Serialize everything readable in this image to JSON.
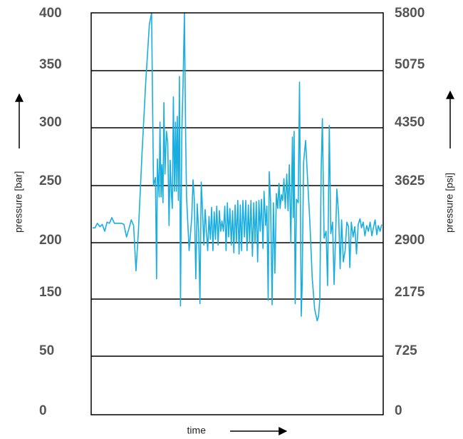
{
  "chart_data": {
    "type": "line",
    "title": "",
    "xlabel": "time",
    "ylabel_left": "pressure [bar]",
    "ylabel_right": "pressure [psi]",
    "left_ticks": [
      "400",
      "350",
      "300",
      "250",
      "200",
      "150",
      "50",
      "0"
    ],
    "right_ticks": [
      "5800",
      "5075",
      "4350",
      "3625",
      "2900",
      "2175",
      "725",
      "0"
    ],
    "grid": true,
    "line_color": "#1aaee0",
    "series": [
      {
        "values": [
          [
            0,
            213
          ],
          [
            1.1,
            213
          ],
          [
            2.2,
            217
          ],
          [
            3.4,
            214
          ],
          [
            4.5,
            216
          ],
          [
            5.6,
            210
          ],
          [
            6.7,
            218
          ],
          [
            7.8,
            217
          ],
          [
            8.9,
            222
          ],
          [
            10.1,
            217
          ],
          [
            11.2,
            217
          ],
          [
            12.3,
            217
          ],
          [
            13.4,
            217
          ],
          [
            14.5,
            216
          ],
          [
            15.7,
            205
          ],
          [
            16.8,
            212
          ],
          [
            17.9,
            220
          ],
          [
            19,
            215
          ],
          [
            20.1,
            175
          ],
          [
            21.2,
            210
          ],
          [
            22.9,
            278
          ],
          [
            24.6,
            340
          ],
          [
            26.3,
            390
          ],
          [
            27.3,
            400
          ],
          [
            28.2,
            250
          ],
          [
            29.1,
            257
          ],
          [
            29.6,
            168
          ],
          [
            30,
            273
          ],
          [
            30.8,
            240
          ],
          [
            31.2,
            305
          ],
          [
            31.7,
            240
          ],
          [
            32.1,
            268
          ],
          [
            32.6,
            235
          ],
          [
            33,
            322
          ],
          [
            33.5,
            260
          ],
          [
            34.2,
            297
          ],
          [
            34.8,
            287
          ],
          [
            35.4,
            215
          ],
          [
            35.9,
            272
          ],
          [
            36.4,
            245
          ],
          [
            36.9,
            230
          ],
          [
            37.4,
            327
          ],
          [
            37.9,
            245
          ],
          [
            38.4,
            305
          ],
          [
            38.8,
            245
          ],
          [
            39.2,
            310
          ],
          [
            39.7,
            237
          ],
          [
            40.2,
            345
          ],
          [
            40.7,
            138
          ],
          [
            41.3,
            295
          ],
          [
            41.9,
            338
          ],
          [
            42.5,
            400
          ],
          [
            43.1,
            290
          ],
          [
            43.5,
            240
          ],
          [
            44.7,
            193
          ],
          [
            45.9,
            222
          ],
          [
            46.5,
            255
          ],
          [
            47.1,
            238
          ],
          [
            47.8,
            168
          ],
          [
            48.4,
            234
          ],
          [
            49.1,
            210
          ],
          [
            49.7,
            142
          ],
          [
            50.3,
            253
          ],
          [
            50.8,
            233
          ],
          [
            51.5,
            198
          ],
          [
            52.1,
            229
          ],
          [
            52.7,
            210
          ],
          [
            53.3,
            193
          ],
          [
            53.9,
            223
          ],
          [
            54.5,
            203
          ],
          [
            55.1,
            231
          ],
          [
            55.7,
            193
          ],
          [
            56.3,
            227
          ],
          [
            56.9,
            203
          ],
          [
            57.5,
            232
          ],
          [
            58.1,
            198
          ],
          [
            58.7,
            228
          ],
          [
            59.3,
            210
          ],
          [
            59.9,
            219
          ],
          [
            60.6,
            210
          ],
          [
            61.2,
            232
          ],
          [
            61.8,
            193
          ],
          [
            62.4,
            235
          ],
          [
            63,
            205
          ],
          [
            63.6,
            230
          ],
          [
            64.2,
            198
          ],
          [
            64.8,
            228
          ],
          [
            65.4,
            191
          ],
          [
            66,
            233
          ],
          [
            66.6,
            200
          ],
          [
            67.2,
            237
          ],
          [
            67.8,
            190
          ],
          [
            68.4,
            233
          ],
          [
            69,
            193
          ],
          [
            69.6,
            237
          ],
          [
            70.3,
            205
          ],
          [
            70.9,
            237
          ],
          [
            71.5,
            193
          ],
          [
            72.1,
            233
          ],
          [
            72.7,
            200
          ],
          [
            73.3,
            237
          ],
          [
            74,
            188
          ],
          [
            74.6,
            235
          ],
          [
            75.2,
            200
          ],
          [
            75.8,
            236
          ],
          [
            76.4,
            183
          ],
          [
            77,
            237
          ],
          [
            77.6,
            210
          ],
          [
            78.2,
            238
          ],
          [
            78.9,
            195
          ],
          [
            79.4,
            245
          ],
          [
            80.1,
            215
          ],
          [
            80.7,
            232
          ],
          [
            81.3,
            148
          ],
          [
            81.8,
            262
          ],
          [
            82.4,
            237
          ],
          [
            83.1,
            140
          ],
          [
            83.7,
            235
          ],
          [
            84.4,
            173
          ],
          [
            85.1,
            243
          ],
          [
            85.7,
            230
          ],
          [
            86.3,
            252
          ],
          [
            86.8,
            230
          ],
          [
            87.4,
            242
          ],
          [
            88,
            237
          ],
          [
            88.6,
            256
          ],
          [
            89.2,
            230
          ],
          [
            89.9,
            260
          ],
          [
            90.5,
            228
          ],
          [
            91.1,
            268
          ],
          [
            91.8,
            200
          ],
          [
            92.5,
            292
          ],
          [
            92.9,
            222
          ],
          [
            93.3,
            297
          ],
          [
            93.8,
            142
          ],
          [
            94.4,
            238
          ],
          [
            95.2,
            235
          ],
          [
            95.8,
            340
          ],
          [
            96.6,
            120
          ],
          [
            97,
            160
          ],
          [
            97.7,
            270
          ],
          [
            98.6,
            289
          ],
          [
            99.7,
            250
          ],
          [
            100.6,
            218
          ],
          [
            101.7,
            168
          ],
          [
            102.8,
            133
          ],
          [
            104,
            112
          ],
          [
            104.6,
            120
          ],
          [
            105.2,
            150
          ],
          [
            105.8,
            260
          ],
          [
            106.4,
            308
          ],
          [
            107.2,
            204
          ],
          [
            108.1,
            210
          ],
          [
            108.8,
            162
          ],
          [
            109.6,
            302
          ],
          [
            110.3,
            208
          ],
          [
            111.1,
            218
          ],
          [
            111.8,
            163
          ],
          [
            112.5,
            205
          ],
          [
            113.1,
            247
          ],
          [
            113.9,
            225
          ],
          [
            114.6,
            177
          ],
          [
            115.3,
            220
          ],
          [
            116.1,
            183
          ],
          [
            116.9,
            193
          ],
          [
            117.7,
            218
          ],
          [
            118.5,
            214
          ],
          [
            119.1,
            178
          ],
          [
            119.8,
            218
          ],
          [
            120.6,
            205
          ],
          [
            121.4,
            214
          ],
          [
            122.2,
            190
          ],
          [
            123,
            216
          ],
          [
            123.8,
            221
          ],
          [
            124.5,
            213
          ],
          [
            125.3,
            218
          ],
          [
            126.1,
            206
          ],
          [
            126.9,
            215
          ],
          [
            127.7,
            210
          ],
          [
            128.5,
            218
          ],
          [
            129.3,
            206
          ],
          [
            130,
            213
          ],
          [
            130.8,
            220
          ],
          [
            131.6,
            207
          ],
          [
            132.3,
            215
          ],
          [
            133.1,
            210
          ],
          [
            133.9,
            216
          ]
        ]
      }
    ]
  }
}
